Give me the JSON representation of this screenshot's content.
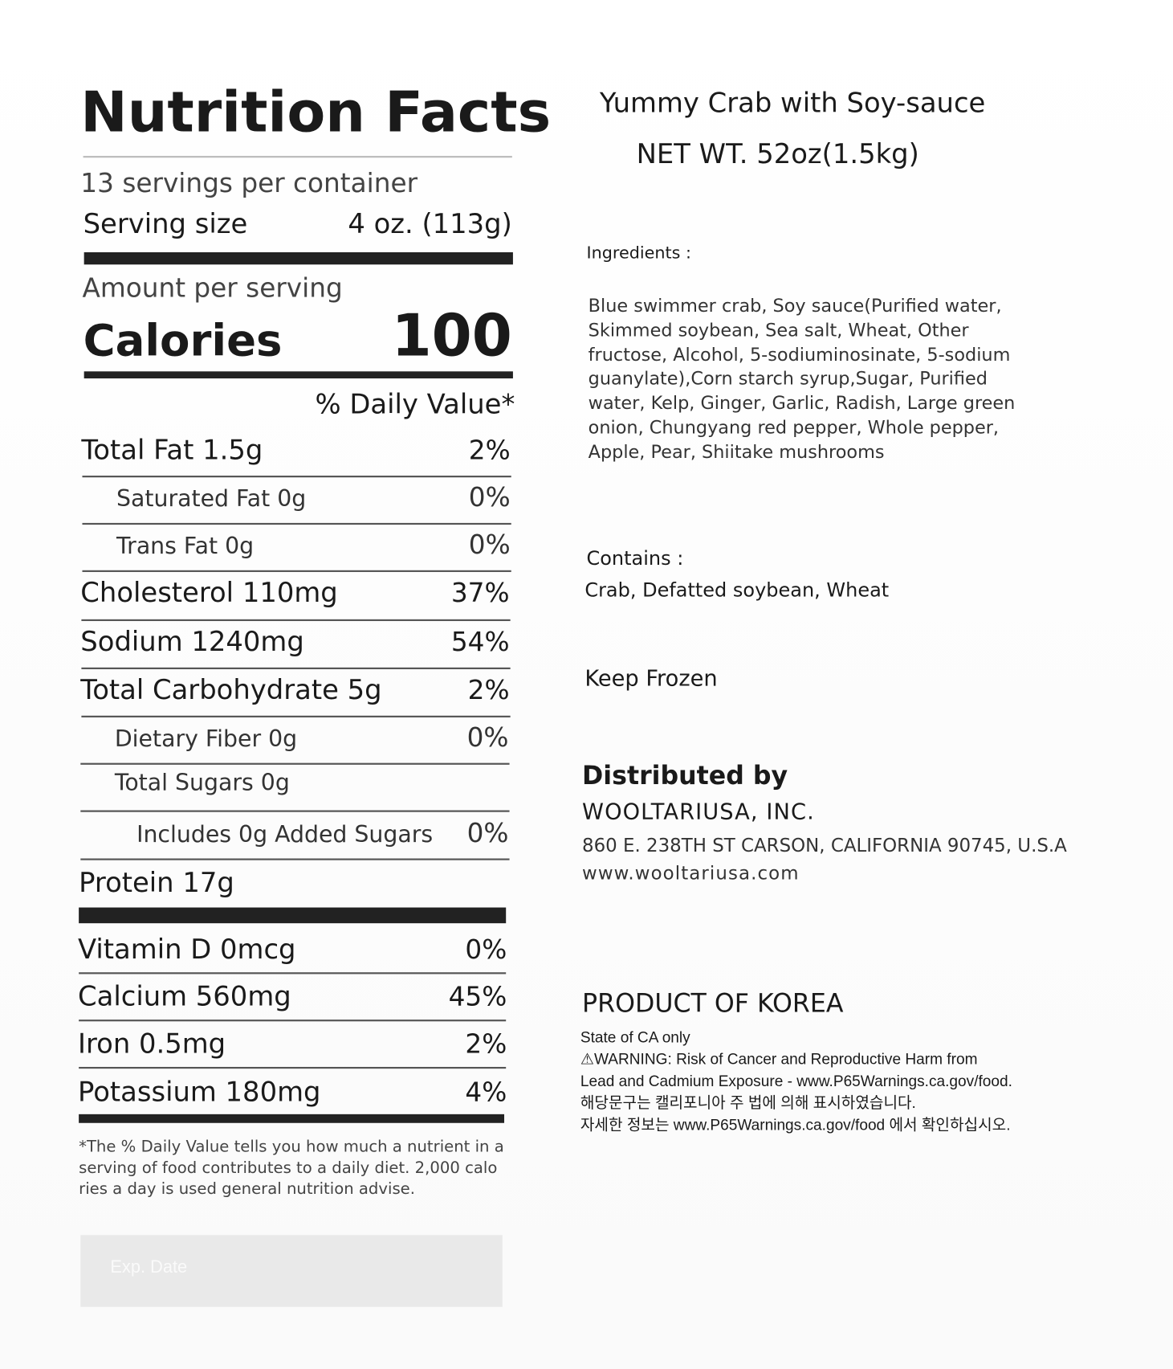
{
  "nutrition": {
    "title": "Nutrition Facts",
    "servings_per_container": "13 servings per container",
    "serving_size_label": "Serving size",
    "serving_size_value": "4 oz. (113g)",
    "amount_per_serving": "Amount per serving",
    "calories_label": "Calories",
    "calories_value": "100",
    "daily_value_header": "% Daily Value*",
    "rows": [
      {
        "label": "Total Fat 1.5g",
        "pct": "2%"
      },
      {
        "label": "Saturated Fat 0g",
        "pct": "0%"
      },
      {
        "label": "Trans Fat 0g",
        "pct": "0%"
      },
      {
        "label": "Cholesterol 110mg",
        "pct": "37%"
      },
      {
        "label": "Sodium 1240mg",
        "pct": "54%"
      },
      {
        "label": "Total Carbohydrate 5g",
        "pct": "2%"
      },
      {
        "label": "Dietary Fiber 0g",
        "pct": "0%"
      },
      {
        "label": "Total Sugars 0g",
        "pct": ""
      },
      {
        "label": "Includes 0g Added Sugars",
        "pct": "0%"
      },
      {
        "label": "Protein 17g",
        "pct": ""
      }
    ],
    "vitamins": [
      {
        "label": "Vitamin D 0mcg",
        "pct": "0%"
      },
      {
        "label": "Calcium 560mg",
        "pct": "45%"
      },
      {
        "label": "Iron 0.5mg",
        "pct": "2%"
      },
      {
        "label": "Potassium 180mg",
        "pct": "4%"
      }
    ],
    "footnote": [
      "*The % Daily Value tells you how much a nutrient in a",
      "serving of food contributes to a daily diet. 2,000 calo",
      "ries a day is used general nutrition advise."
    ],
    "exp_date_label": "Exp. Date"
  },
  "product": {
    "name": "Yummy Crab with Soy-sauce",
    "net_wt": "NET WT. 52oz(1.5kg)",
    "ingredients_label": "Ingredients :",
    "ingredients_lines": [
      "Blue swimmer crab, Soy sauce(Purified water,",
      "Skimmed soybean, Sea salt, Wheat, Other",
      "fructose, Alcohol, 5-sodiuminosinate, 5-sodium",
      "guanylate),Corn starch syrup,Sugar, Purified",
      "water, Kelp, Ginger, Garlic, Radish, Large green",
      "onion, Chungyang red pepper, Whole pepper,",
      "Apple, Pear, Shiitake mushrooms"
    ],
    "contains_label": "Contains :",
    "contains": "Crab, Defatted soybean, Wheat",
    "storage": "Keep Frozen",
    "distributed_by_label": "Distributed by",
    "distributor": "WOOLTARIUSA, INC.",
    "address": "860 E. 238TH ST CARSON, CALIFORNIA 90745, U.S.A",
    "website": "www.wooltariusa.com",
    "origin": "PRODUCT OF KOREA",
    "warning_lines": [
      "State of CA only",
      "⚠WARNING: Risk of Cancer and Reproductive Harm from",
      "Lead and Cadmium Exposure - www.P65Warnings.ca.gov/food.",
      "해당문구는 캘리포니아 주 법에 의해 표시하였습니다.",
      "자세한 정보는 www.P65Warnings.ca.gov/food 에서 확인하십시오."
    ]
  }
}
